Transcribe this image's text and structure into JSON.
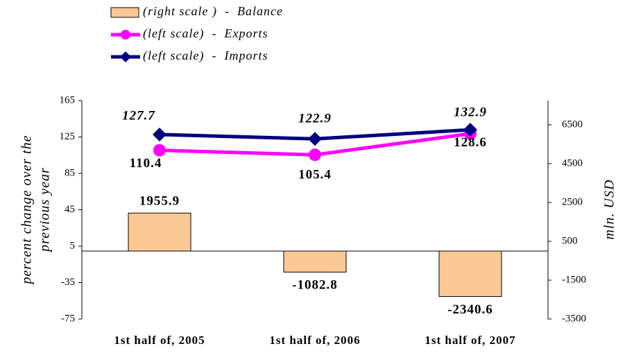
{
  "chart_data": {
    "type": "bar-line",
    "categories": [
      "1st half of, 2005",
      "1st half of, 2006",
      "1st half of, 2007"
    ],
    "ylabel": [
      "percent change over the",
      "previous year"
    ],
    "y2label": "mln. USD",
    "ylim": [
      -75,
      165
    ],
    "yticks": [
      -75,
      -35,
      5,
      45,
      85,
      125,
      165
    ],
    "y2lim": [
      -3500,
      7750
    ],
    "y2ticks": [
      -3500,
      -1500,
      500,
      2500,
      4500,
      6500
    ],
    "grid": false,
    "series": [
      {
        "name": "(right scale )  -  Balance",
        "type": "bar",
        "axis": "y2",
        "color": "#fcc996",
        "values": [
          1955.9,
          -1082.8,
          -2340.6
        ]
      },
      {
        "name": "(left scale)  -  Exports",
        "type": "line",
        "axis": "y",
        "color": "#ff00ff",
        "values": [
          110.4,
          105.4,
          128.6
        ]
      },
      {
        "name": "(left scale)  -  Imports",
        "type": "line",
        "axis": "y",
        "color": "#000080",
        "values": [
          127.7,
          122.9,
          132.9
        ]
      }
    ]
  }
}
